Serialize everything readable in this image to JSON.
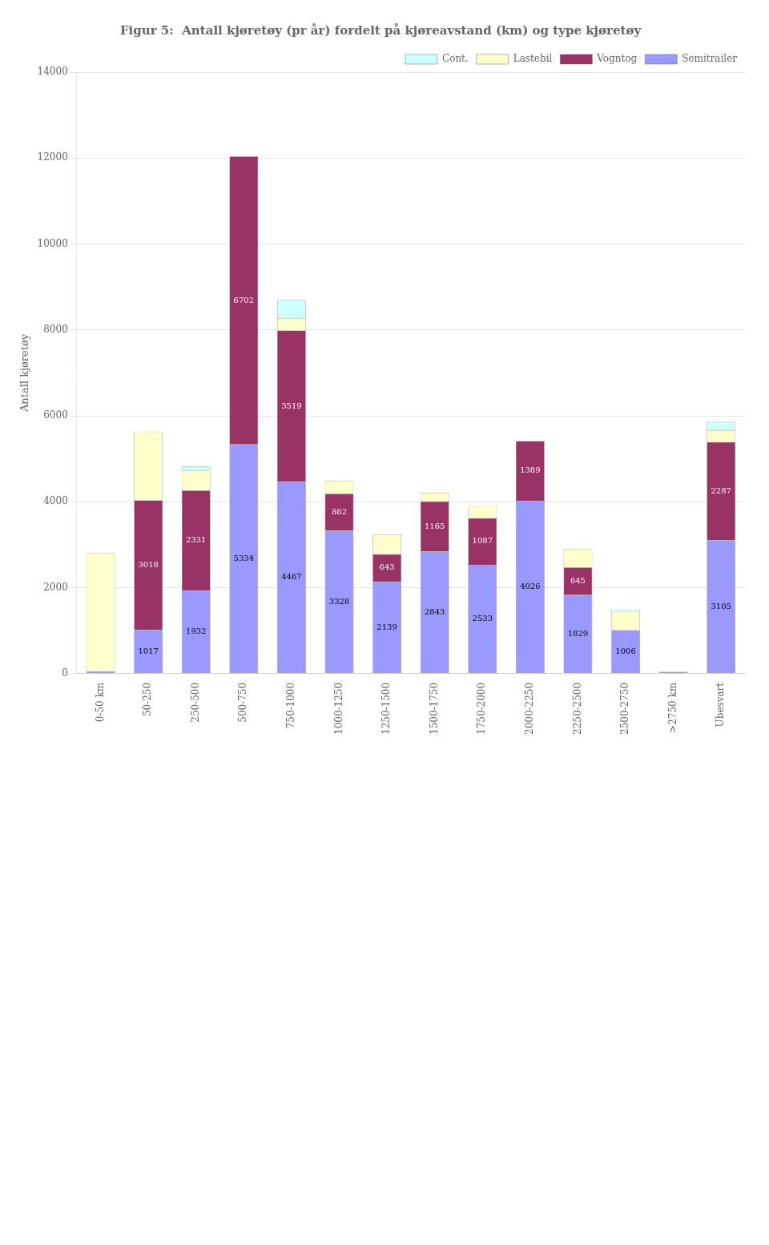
{
  "chart_data": {
    "type": "bar",
    "title": "Figur 5:  Antall kjøretøy (pr år) fordelt på kjøreavstand (km) og type kjøretøy",
    "ylabel": "Antall kjøretøy",
    "categories": [
      "0-50 km",
      "50-250",
      "250-500",
      "500-750",
      "750-1000",
      "1000-1250",
      "1250-1500",
      "1500-1750",
      "1750-2000",
      "2000-2250",
      "2250-2500",
      "2500-2750",
      ">2750 km",
      "Ubesvart"
    ],
    "series": [
      {
        "name": "Semitrailer",
        "color": "#9999FF",
        "values": [
          55,
          1017,
          1932,
          5334,
          4467,
          3328,
          2139,
          2843,
          2533,
          4026,
          1829,
          1006,
          42,
          3105
        ],
        "data_labels": true,
        "value_labels": [
          null,
          "1017",
          "1932",
          "5334",
          "4467",
          "3328",
          "2139",
          "2843",
          "2533",
          "4026",
          "1829",
          "1006",
          null,
          "3105"
        ]
      },
      {
        "name": "Vogntog",
        "color": "#993366",
        "values": [
          0,
          3018,
          2331,
          6702,
          3519,
          862,
          643,
          1165,
          1087,
          1389,
          645,
          10,
          0,
          2287
        ],
        "data_labels": true,
        "value_labels": [
          null,
          "3018",
          "2331",
          "6702",
          "3519",
          "862",
          "643",
          "1165",
          "1087",
          "1389",
          "645",
          null,
          null,
          "2287"
        ]
      },
      {
        "name": "Lastebil",
        "color": "#FFFFCC",
        "values": [
          2750,
          1600,
          460,
          0,
          290,
          300,
          460,
          200,
          280,
          0,
          430,
          420,
          0,
          270
        ]
      },
      {
        "name": "Cont.",
        "color": "#CCFFFF",
        "values": [
          0,
          0,
          100,
          0,
          420,
          0,
          0,
          0,
          0,
          0,
          0,
          60,
          0,
          200
        ]
      }
    ],
    "stacked": true,
    "ylim": [
      0,
      14000
    ],
    "yticks": [
      0,
      2000,
      4000,
      6000,
      8000,
      10000,
      12000,
      14000
    ],
    "grid": true,
    "legend": "upper right"
  }
}
